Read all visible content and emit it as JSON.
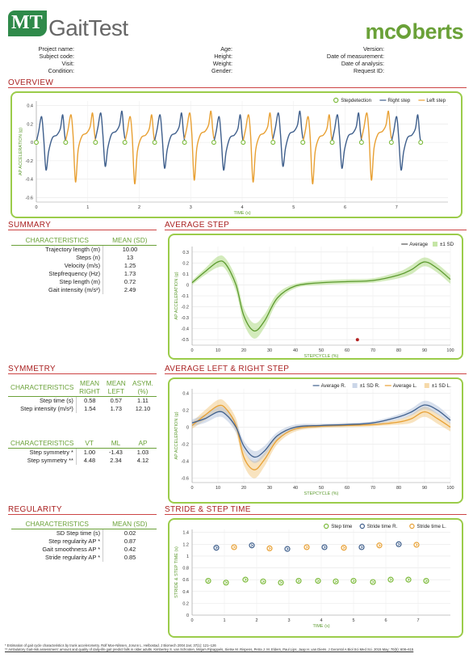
{
  "header": {
    "logo_letters": "MT",
    "app_name": "GaitTest",
    "brand_left": "mc",
    "brand_right": "berts"
  },
  "info": {
    "col1": [
      "Project name:",
      "Subject code:",
      "Visit:",
      "Condition:"
    ],
    "col2": [
      "Age:",
      "Height:",
      "Weight:",
      "Gender:"
    ],
    "col3": [
      "Version:",
      "Date of measurement:",
      "Date of analysis:",
      "Request ID:"
    ]
  },
  "sections": {
    "overview": "OVERVIEW",
    "summary": "SUMMARY",
    "average_step": "AVERAGE STEP",
    "symmetry": "SYMMETRY",
    "avg_lr": "AVERAGE LEFT & RIGHT STEP",
    "regularity": "REGULARITY",
    "stride": "STRIDE & STEP TIME"
  },
  "summary_table": {
    "headers": [
      "CHARACTERISTICS",
      "MEAN (SD)"
    ],
    "rows": [
      [
        "Trajectory length (m)",
        "10.00"
      ],
      [
        "Steps (n)",
        "13"
      ],
      [
        "Velocity (m/s)",
        "1.25"
      ],
      [
        "Stepfrequency (Hz)",
        "1.73"
      ],
      [
        "Step length (m)",
        "0.72"
      ],
      [
        "Gait intensity (m/s²)",
        "2.49"
      ]
    ]
  },
  "symmetry_table1": {
    "headers": [
      "CHARACTERISTICS",
      "MEAN RIGHT",
      "MEAN LEFT",
      "ASYM. (%)"
    ],
    "rows": [
      [
        "Step time (s)",
        "0.58",
        "0.57",
        "1.11"
      ],
      [
        "Step intensity (m/s²)",
        "1.54",
        "1.73",
        "12.10"
      ]
    ]
  },
  "symmetry_table2": {
    "headers": [
      "CHARACTERISTICS",
      "VT",
      "ML",
      "AP"
    ],
    "rows": [
      [
        "Step symmetry *",
        "1.00",
        "-1.43",
        "1.03"
      ],
      [
        "Step symmetry **",
        "4.48",
        "2.34",
        "4.12"
      ]
    ]
  },
  "regularity_table": {
    "headers": [
      "CHARACTERISTICS",
      "MEAN (SD)"
    ],
    "rows": [
      [
        "SD Step time (s)",
        "0.02"
      ],
      [
        "Step regularity AP *",
        "0.87"
      ],
      [
        "Gait smoothness AP *",
        "0.42"
      ],
      [
        "Stride regularity AP *",
        "0.85"
      ]
    ]
  },
  "colors": {
    "right": "#3f5f8c",
    "left": "#e8a033",
    "green": "#5c9a2e",
    "green_band": "#9ed36a",
    "accent": "#a22222"
  },
  "footnotes": [
    "* Estimation of gait cycle characteristics by trunk accelerometry. Rolf Moe-Nilssen, Jorunn L. Helbostad. J Biomech 2004 Jan; 37(1): 121–126",
    "** Ambulatory Gait-risk assessment: amount and quality of daily-life gait predict falls in older adults. Kimberley S. van Schooten, Mirjam Pijnappels, Sietse M. Rispens, Petra J. M. Elders, Paul Lips, Jaap H. van Dieën. J Gerontol A Biol Sci Med Sci. 2015 May; 70(5): 608–615"
  ],
  "chart_data": [
    {
      "type": "line",
      "name": "overview",
      "legend": [
        "Stepdetection",
        "Right step",
        "Left step"
      ],
      "xlabel": "TIME (s)",
      "ylabel": "AP ACCELERATION (g)",
      "xlim": [
        0,
        8
      ],
      "ylim": [
        -0.65,
        0.45
      ],
      "xticks": [
        0,
        1,
        2,
        3,
        4,
        5,
        6,
        7
      ],
      "yticks": [
        0.4,
        0.2,
        0,
        -0.2,
        -0.4,
        -0.6
      ],
      "step_times": [
        0.0,
        0.57,
        1.15,
        1.72,
        2.3,
        2.88,
        3.45,
        4.02,
        4.6,
        5.18,
        5.75,
        6.32,
        6.9,
        7.47
      ]
    },
    {
      "type": "line",
      "name": "average_step",
      "legend": [
        "Average",
        "±1 SD"
      ],
      "xlabel": "STEPCYCLE (%)",
      "ylabel": "AP ACCELERATION (g)",
      "xlim": [
        0,
        100
      ],
      "ylim": [
        -0.55,
        0.35
      ],
      "xticks": [
        0,
        10,
        20,
        30,
        40,
        50,
        60,
        70,
        80,
        90,
        100
      ],
      "yticks": [
        0.3,
        0.2,
        0.1,
        0,
        -0.1,
        -0.2,
        -0.3,
        -0.4,
        -0.5
      ],
      "x": [
        0,
        5,
        10,
        13,
        17,
        20,
        24,
        28,
        33,
        40,
        50,
        60,
        70,
        80,
        85,
        90,
        95,
        100
      ],
      "y": [
        0.02,
        0.12,
        0.21,
        0.19,
        0.0,
        -0.28,
        -0.42,
        -0.33,
        -0.12,
        -0.01,
        0.02,
        0.03,
        0.04,
        0.09,
        0.14,
        0.21,
        0.15,
        0.05
      ],
      "sd": [
        0.02,
        0.03,
        0.05,
        0.05,
        0.06,
        0.07,
        0.07,
        0.06,
        0.04,
        0.02,
        0.02,
        0.02,
        0.02,
        0.03,
        0.04,
        0.04,
        0.04,
        0.04
      ],
      "marker": {
        "x": 64,
        "y": -0.5
      }
    },
    {
      "type": "line",
      "name": "average_left_right",
      "legend": [
        "Average R.",
        "±1 SD R.",
        "Average L.",
        "±1 SD L."
      ],
      "xlabel": "STEPCYCLE (%)",
      "ylabel": "AP ACCELERATION (g)",
      "xlim": [
        0,
        100
      ],
      "ylim": [
        -0.65,
        0.45
      ],
      "xticks": [
        0,
        10,
        20,
        30,
        40,
        50,
        60,
        70,
        80,
        90,
        100
      ],
      "yticks": [
        0.4,
        0.2,
        0,
        -0.2,
        -0.4,
        -0.6
      ],
      "x": [
        0,
        5,
        10,
        13,
        17,
        20,
        24,
        28,
        33,
        40,
        50,
        60,
        70,
        80,
        85,
        90,
        95,
        100
      ],
      "right": [
        0.05,
        0.1,
        0.18,
        0.15,
        0.0,
        -0.22,
        -0.35,
        -0.28,
        -0.1,
        0.0,
        0.02,
        0.03,
        0.05,
        0.12,
        0.18,
        0.26,
        0.2,
        0.08
      ],
      "left": [
        0.02,
        0.14,
        0.25,
        0.22,
        0.02,
        -0.35,
        -0.5,
        -0.38,
        -0.15,
        -0.02,
        0.01,
        0.02,
        0.03,
        0.06,
        0.1,
        0.18,
        0.1,
        0.0
      ],
      "sd_r": [
        0.04,
        0.05,
        0.06,
        0.06,
        0.06,
        0.06,
        0.07,
        0.06,
        0.04,
        0.03,
        0.02,
        0.02,
        0.02,
        0.03,
        0.04,
        0.05,
        0.05,
        0.04
      ],
      "sd_l": [
        0.04,
        0.06,
        0.07,
        0.07,
        0.08,
        0.09,
        0.1,
        0.08,
        0.05,
        0.03,
        0.02,
        0.02,
        0.02,
        0.03,
        0.05,
        0.06,
        0.06,
        0.05
      ]
    },
    {
      "type": "scatter",
      "name": "stride_step_time",
      "legend": [
        "Step time",
        "Stride time R.",
        "Stride time L."
      ],
      "xlabel": "TIME (s)",
      "ylabel": "STRIDE & STEP TIME (s)",
      "xlim": [
        0,
        8
      ],
      "ylim": [
        0,
        1.45
      ],
      "xticks": [
        0,
        1,
        2,
        3,
        4,
        5,
        6,
        7
      ],
      "yticks": [
        1.4,
        1.2,
        1,
        0.8,
        0.6,
        0.4,
        0.2,
        0
      ],
      "step": {
        "x": [
          0.5,
          1.05,
          1.65,
          2.2,
          2.75,
          3.3,
          3.9,
          4.45,
          5.0,
          5.6,
          6.15,
          6.7,
          7.25
        ],
        "y": [
          0.58,
          0.55,
          0.6,
          0.57,
          0.55,
          0.58,
          0.58,
          0.57,
          0.58,
          0.56,
          0.6,
          0.6,
          0.58
        ]
      },
      "stride_r": {
        "x": [
          0.75,
          1.85,
          2.95,
          4.1,
          5.25,
          6.4
        ],
        "y": [
          1.14,
          1.18,
          1.12,
          1.15,
          1.15,
          1.2
        ]
      },
      "stride_l": {
        "x": [
          1.3,
          2.4,
          3.55,
          4.7,
          5.8,
          6.95
        ],
        "y": [
          1.15,
          1.13,
          1.15,
          1.14,
          1.18,
          1.19
        ]
      }
    }
  ]
}
